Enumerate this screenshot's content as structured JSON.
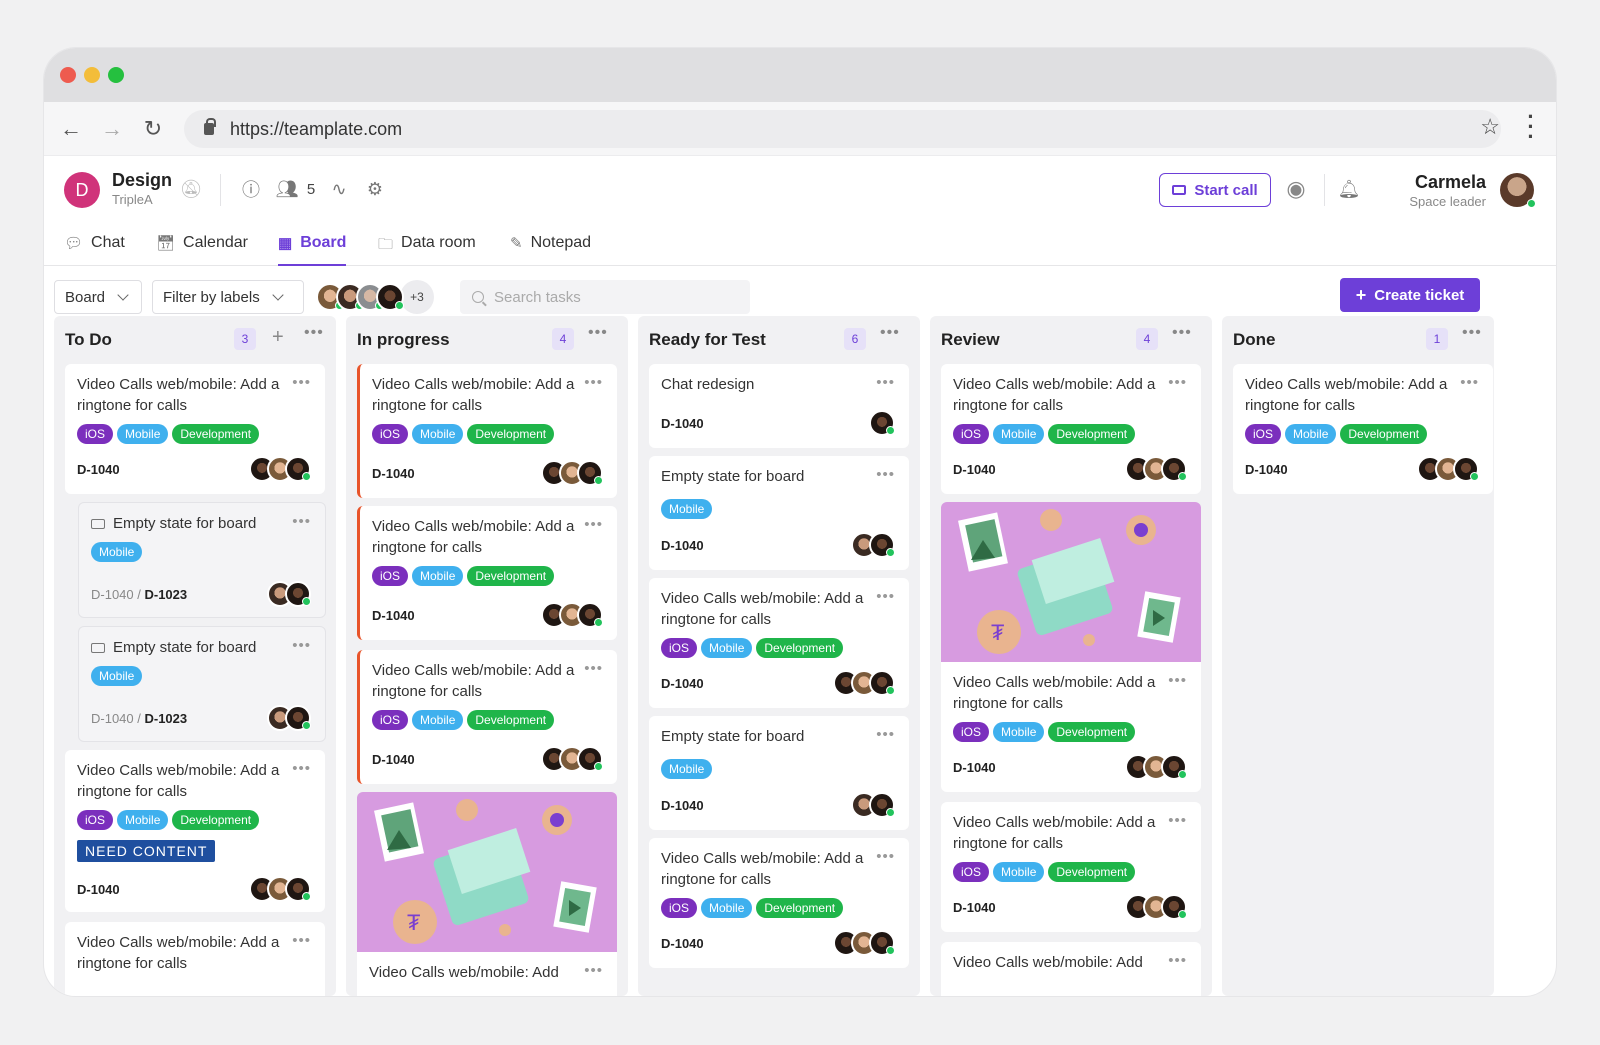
{
  "browser": {
    "url": "https://teamplate.com"
  },
  "workspace": {
    "initial": "D",
    "name": "Design",
    "team": "TripleA",
    "members_count": "5"
  },
  "header": {
    "start_call": "Start call",
    "user_name": "Carmela",
    "user_role": "Space leader"
  },
  "tabs": [
    {
      "label": "Chat",
      "icon": "chat-icon"
    },
    {
      "label": "Calendar",
      "icon": "calendar-icon"
    },
    {
      "label": "Board",
      "icon": "board-icon",
      "active": true
    },
    {
      "label": "Data room",
      "icon": "folder-icon"
    },
    {
      "label": "Notepad",
      "icon": "pencil-icon"
    }
  ],
  "toolbar": {
    "view": "Board",
    "filter": "Filter by labels",
    "more_members": "+3",
    "search_placeholder": "Search tasks",
    "create": "Create ticket"
  },
  "tags": {
    "ios": "iOS",
    "mobile": "Mobile",
    "dev": "Development",
    "need": "NEED CONTENT"
  },
  "colors": {
    "accent": "#6d3fd8",
    "ios": "#7b2fbd",
    "mobile": "#3fb0ee",
    "development": "#1fb54a",
    "in_progress_marker": "#e8542a"
  },
  "columns": [
    {
      "title": "To Do",
      "count": "3"
    },
    {
      "title": "In progress",
      "count": "4"
    },
    {
      "title": "Ready for Test",
      "count": "6"
    },
    {
      "title": "Review",
      "count": "4"
    },
    {
      "title": "Done",
      "count": "1"
    }
  ],
  "cards": {
    "video": "Video Calls web/mobile: Add a ringtone for calls",
    "video_cut": "Video Calls web/mobile: Add",
    "empty": "Empty state for board",
    "chat": "Chat redesign",
    "id": "D-1040",
    "parent_id": "D-1040",
    "child_id": "D-1023",
    "sep": " / "
  }
}
